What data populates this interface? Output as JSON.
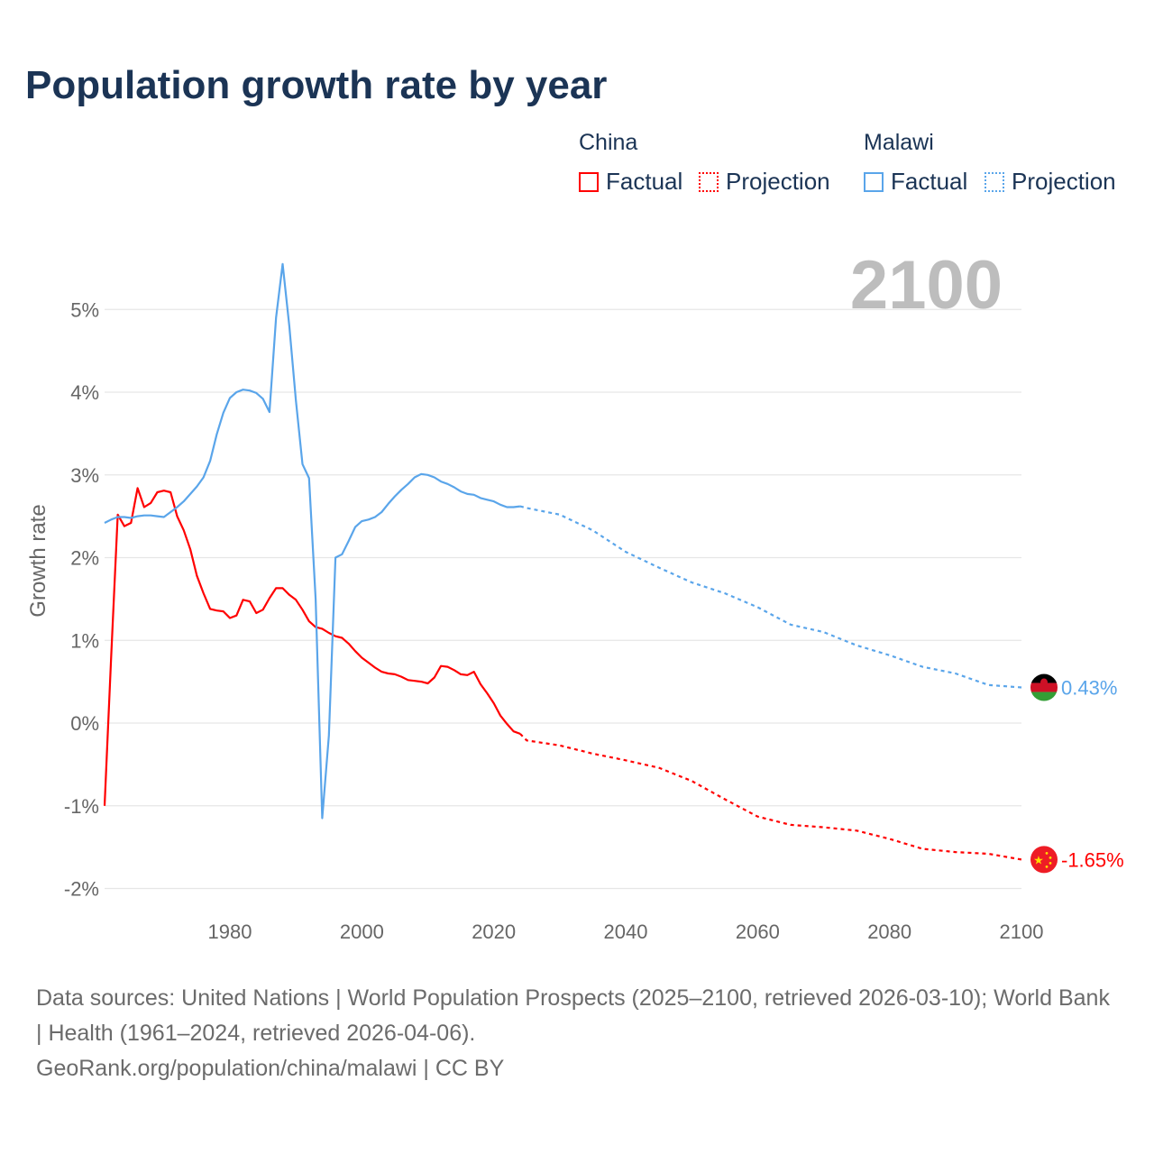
{
  "title": "Population growth rate by year",
  "legend": {
    "groups": [
      {
        "name": "China",
        "color": "#ff0000",
        "factual": "Factual",
        "projection": "Projection"
      },
      {
        "name": "Malawi",
        "color": "#5aa5ea",
        "factual": "Factual",
        "projection": "Projection"
      }
    ]
  },
  "year_display": "2100",
  "end_labels": {
    "china": "-1.65%",
    "malawi": "0.43%"
  },
  "footer": {
    "sources": "Data sources: United Nations | World Population Prospects (2025–2100, retrieved 2026-03-10); World Bank | Health (1961–2024, retrieved 2026-04-06).",
    "credit": "GeoRank.org/population/china/malawi | CC BY"
  },
  "chart_data": {
    "type": "line",
    "title": "Population growth rate by year",
    "xlabel": "",
    "ylabel": "Growth rate",
    "xlim": [
      1961,
      2100
    ],
    "ylim": [
      -2.2,
      5.6
    ],
    "x_ticks": [
      1980,
      2000,
      2020,
      2040,
      2060,
      2080,
      2100
    ],
    "y_ticks": [
      -2,
      -1,
      0,
      1,
      2,
      3,
      4,
      5
    ],
    "y_tick_labels": [
      "-2%",
      "-1%",
      "0%",
      "1%",
      "2%",
      "3%",
      "4%",
      "5%"
    ],
    "grid": true,
    "series": [
      {
        "name": "China Factual",
        "color": "#ff0000",
        "dashed": false,
        "start": 1961,
        "values": [
          -1.0,
          0.8,
          2.52,
          2.38,
          2.42,
          2.84,
          2.61,
          2.66,
          2.79,
          2.81,
          2.79,
          2.5,
          2.33,
          2.1,
          1.78,
          1.57,
          1.38,
          1.36,
          1.35,
          1.27,
          1.3,
          1.49,
          1.47,
          1.33,
          1.37,
          1.51,
          1.63,
          1.63,
          1.55,
          1.49,
          1.37,
          1.23,
          1.16,
          1.14,
          1.09,
          1.05,
          1.03,
          0.96,
          0.87,
          0.79,
          0.73,
          0.67,
          0.62,
          0.6,
          0.59,
          0.56,
          0.52,
          0.51,
          0.5,
          0.48,
          0.55,
          0.69,
          0.68,
          0.64,
          0.59,
          0.58,
          0.62,
          0.47,
          0.36,
          0.24,
          0.09,
          -0.01,
          -0.1,
          -0.13
        ]
      },
      {
        "name": "China Projection",
        "color": "#ff0000",
        "dashed": true,
        "x": [
          2024,
          2025,
          2030,
          2035,
          2040,
          2045,
          2050,
          2055,
          2060,
          2065,
          2070,
          2075,
          2080,
          2085,
          2090,
          2095,
          2100
        ],
        "values": [
          -0.13,
          -0.21,
          -0.27,
          -0.37,
          -0.45,
          -0.54,
          -0.7,
          -0.92,
          -1.13,
          -1.23,
          -1.26,
          -1.3,
          -1.4,
          -1.52,
          -1.56,
          -1.58,
          -1.65
        ]
      },
      {
        "name": "Malawi Factual",
        "color": "#5aa5ea",
        "dashed": false,
        "start": 1961,
        "values": [
          2.42,
          2.46,
          2.49,
          2.49,
          2.48,
          2.5,
          2.51,
          2.51,
          2.5,
          2.49,
          2.55,
          2.61,
          2.68,
          2.77,
          2.86,
          2.97,
          3.17,
          3.49,
          3.75,
          3.93,
          4.0,
          4.03,
          4.02,
          3.99,
          3.92,
          3.76,
          4.9,
          5.55,
          4.8,
          3.9,
          3.13,
          2.96,
          1.5,
          -1.15,
          -0.15,
          2.0,
          2.04,
          2.2,
          2.37,
          2.44,
          2.46,
          2.49,
          2.55,
          2.65,
          2.74,
          2.82,
          2.89,
          2.97,
          3.01,
          3.0,
          2.97,
          2.92,
          2.89,
          2.85,
          2.8,
          2.77,
          2.76,
          2.72,
          2.7,
          2.68,
          2.64,
          2.61,
          2.61,
          2.62
        ]
      },
      {
        "name": "Malawi Projection",
        "color": "#5aa5ea",
        "dashed": true,
        "x": [
          2024,
          2025,
          2030,
          2035,
          2040,
          2045,
          2050,
          2055,
          2060,
          2065,
          2070,
          2075,
          2080,
          2085,
          2090,
          2095,
          2100
        ],
        "values": [
          2.62,
          2.6,
          2.52,
          2.33,
          2.07,
          1.88,
          1.7,
          1.57,
          1.4,
          1.19,
          1.1,
          0.94,
          0.82,
          0.68,
          0.6,
          0.46,
          0.43
        ]
      }
    ]
  }
}
